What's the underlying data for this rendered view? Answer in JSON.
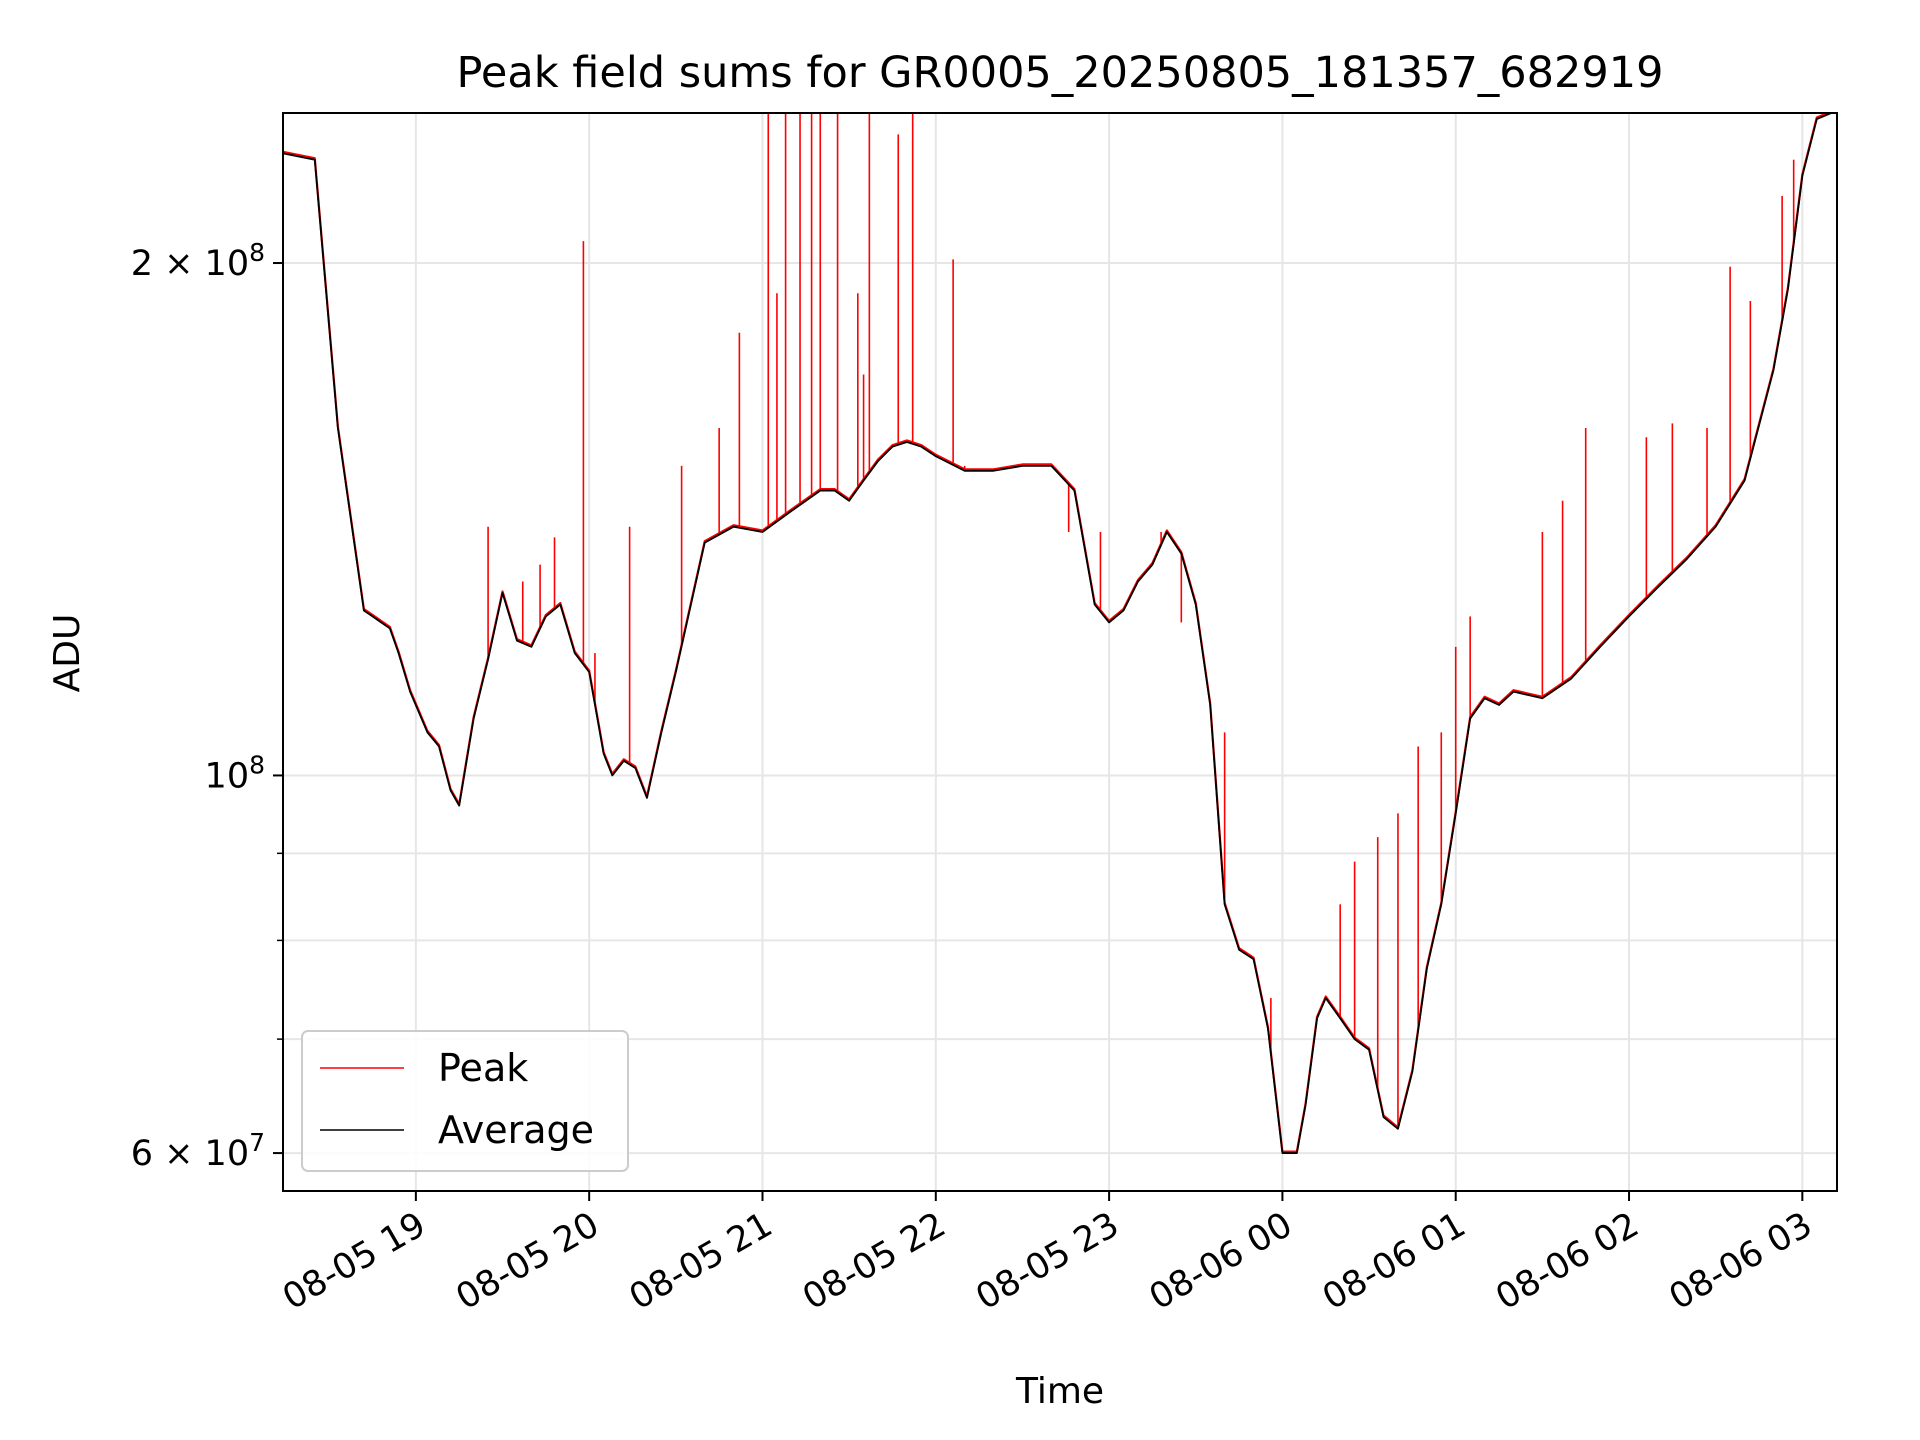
{
  "chart_data": {
    "type": "line",
    "title": "Peak field sums for GR0005_20250805_181357_682919",
    "xlabel": "Time",
    "ylabel": "ADU",
    "yscale": "log",
    "ylim": [
      57000000,
      245000000
    ],
    "xlim": [
      "2025-08-05 18:14",
      "2025-08-06 03:12"
    ],
    "grid": true,
    "legend_position": "lower-left",
    "colors": {
      "peak": "#ff0000",
      "average": "#000000",
      "grid": "#e6e6e6"
    },
    "x_ticks": [
      {
        "value": "2025-08-05 19:00",
        "label": "08-05 19"
      },
      {
        "value": "2025-08-05 20:00",
        "label": "08-05 20"
      },
      {
        "value": "2025-08-05 21:00",
        "label": "08-05 21"
      },
      {
        "value": "2025-08-05 22:00",
        "label": "08-05 22"
      },
      {
        "value": "2025-08-05 23:00",
        "label": "08-05 23"
      },
      {
        "value": "2025-08-06 00:00",
        "label": "08-06 00"
      },
      {
        "value": "2025-08-06 01:00",
        "label": "08-06 01"
      },
      {
        "value": "2025-08-06 02:00",
        "label": "08-06 02"
      },
      {
        "value": "2025-08-06 03:00",
        "label": "08-06 03"
      }
    ],
    "y_major_ticks": [
      {
        "value": 60000000,
        "base": "6 × 10",
        "exp": "7"
      },
      {
        "value": 100000000,
        "base": "10",
        "exp": "8"
      },
      {
        "value": 200000000,
        "base": "2 × 10",
        "exp": "8"
      }
    ],
    "y_minor_gridlines": [
      70000000,
      80000000,
      90000000
    ],
    "series": [
      {
        "name": "Average",
        "x": [
          "2025-08-05 18:14",
          "2025-08-05 18:25",
          "2025-08-05 18:33",
          "2025-08-05 18:42",
          "2025-08-05 18:45",
          "2025-08-05 18:51",
          "2025-08-05 18:54",
          "2025-08-05 18:58",
          "2025-08-05 19:04",
          "2025-08-05 19:08",
          "2025-08-05 19:12",
          "2025-08-05 19:15",
          "2025-08-05 19:20",
          "2025-08-05 19:25",
          "2025-08-05 19:30",
          "2025-08-05 19:35",
          "2025-08-05 19:40",
          "2025-08-05 19:45",
          "2025-08-05 19:50",
          "2025-08-05 19:55",
          "2025-08-05 20:00",
          "2025-08-05 20:05",
          "2025-08-05 20:08",
          "2025-08-05 20:12",
          "2025-08-05 20:16",
          "2025-08-05 20:20",
          "2025-08-05 20:25",
          "2025-08-05 20:30",
          "2025-08-05 20:40",
          "2025-08-05 20:50",
          "2025-08-05 21:00",
          "2025-08-05 21:10",
          "2025-08-05 21:20",
          "2025-08-05 21:25",
          "2025-08-05 21:30",
          "2025-08-05 21:35",
          "2025-08-05 21:40",
          "2025-08-05 21:45",
          "2025-08-05 21:50",
          "2025-08-05 21:55",
          "2025-08-05 22:00",
          "2025-08-05 22:10",
          "2025-08-05 22:20",
          "2025-08-05 22:30",
          "2025-08-05 22:40",
          "2025-08-05 22:48",
          "2025-08-05 22:55",
          "2025-08-05 23:00",
          "2025-08-05 23:05",
          "2025-08-05 23:10",
          "2025-08-05 23:15",
          "2025-08-05 23:20",
          "2025-08-05 23:25",
          "2025-08-05 23:30",
          "2025-08-05 23:35",
          "2025-08-05 23:40",
          "2025-08-05 23:45",
          "2025-08-05 23:50",
          "2025-08-05 23:55",
          "2025-08-06 00:00",
          "2025-08-06 00:05",
          "2025-08-06 00:08",
          "2025-08-06 00:12",
          "2025-08-06 00:15",
          "2025-08-06 00:20",
          "2025-08-06 00:25",
          "2025-08-06 00:30",
          "2025-08-06 00:35",
          "2025-08-06 00:40",
          "2025-08-06 00:45",
          "2025-08-06 00:50",
          "2025-08-06 00:55",
          "2025-08-06 01:00",
          "2025-08-06 01:05",
          "2025-08-06 01:10",
          "2025-08-06 01:15",
          "2025-08-06 01:20",
          "2025-08-06 01:30",
          "2025-08-06 01:40",
          "2025-08-06 01:50",
          "2025-08-06 02:00",
          "2025-08-06 02:10",
          "2025-08-06 02:20",
          "2025-08-06 02:30",
          "2025-08-06 02:40",
          "2025-08-06 02:50",
          "2025-08-06 02:55",
          "2025-08-06 03:00",
          "2025-08-06 03:05",
          "2025-08-06 03:10"
        ],
        "values": [
          232000000,
          230000000,
          160000000,
          125000000,
          124000000,
          122000000,
          118000000,
          112000000,
          106000000,
          104000000,
          98000000,
          96000000,
          108000000,
          117000000,
          128000000,
          120000000,
          119000000,
          124000000,
          126000000,
          118000000,
          115000000,
          103000000,
          100000000,
          102000000,
          101000000,
          97000000,
          106000000,
          115000000,
          137000000,
          140000000,
          139000000,
          143000000,
          147000000,
          147000000,
          145000000,
          149000000,
          153000000,
          156000000,
          157000000,
          156000000,
          154000000,
          151000000,
          151000000,
          152000000,
          152000000,
          147000000,
          126000000,
          123000000,
          125000000,
          130000000,
          133000000,
          139000000,
          135000000,
          126000000,
          110000000,
          84000000,
          79000000,
          78000000,
          71000000,
          60000000,
          60000000,
          64000000,
          72000000,
          74000000,
          72000000,
          70000000,
          69000000,
          63000000,
          62000000,
          67000000,
          77000000,
          84000000,
          95000000,
          108000000,
          111000000,
          110000000,
          112000000,
          111000000,
          114000000,
          119000000,
          124000000,
          129000000,
          134000000,
          140000000,
          149000000,
          173000000,
          193000000,
          225000000,
          243000000,
          245000000
        ]
      },
      {
        "name": "Peak",
        "x": [
          "2025-08-05 19:25",
          "2025-08-05 19:37",
          "2025-08-05 19:43",
          "2025-08-05 19:48",
          "2025-08-05 19:58",
          "2025-08-05 20:02",
          "2025-08-05 20:14",
          "2025-08-05 20:32",
          "2025-08-05 20:45",
          "2025-08-05 20:52",
          "2025-08-05 21:02",
          "2025-08-05 21:05",
          "2025-08-05 21:08",
          "2025-08-05 21:13",
          "2025-08-05 21:17",
          "2025-08-05 21:20",
          "2025-08-05 21:26",
          "2025-08-05 21:33",
          "2025-08-05 21:35",
          "2025-08-05 21:37",
          "2025-08-05 21:47",
          "2025-08-05 21:52",
          "2025-08-05 22:06",
          "2025-08-05 22:10",
          "2025-08-05 22:46",
          "2025-08-05 22:57",
          "2025-08-05 23:18",
          "2025-08-05 23:25",
          "2025-08-05 23:40",
          "2025-08-05 23:56",
          "2025-08-06 00:20",
          "2025-08-06 00:25",
          "2025-08-06 00:33",
          "2025-08-06 00:40",
          "2025-08-06 00:47",
          "2025-08-06 00:55",
          "2025-08-06 01:00",
          "2025-08-06 01:05",
          "2025-08-06 01:30",
          "2025-08-06 01:37",
          "2025-08-06 01:45",
          "2025-08-06 02:06",
          "2025-08-06 02:15",
          "2025-08-06 02:27",
          "2025-08-06 02:35",
          "2025-08-06 02:42",
          "2025-08-06 02:53",
          "2025-08-06 02:57"
        ],
        "values": [
          140000000,
          130000000,
          133000000,
          138000000,
          206000000,
          118000000,
          140000000,
          152000000,
          160000000,
          182000000,
          245000000,
          192000000,
          245000000,
          245000000,
          245000000,
          245000000,
          245000000,
          192000000,
          172000000,
          245000000,
          238000000,
          245000000,
          201000000,
          152000000,
          139000000,
          139000000,
          139000000,
          123000000,
          106000000,
          74000000,
          84000000,
          89000000,
          92000000,
          95000000,
          104000000,
          106000000,
          119000000,
          124000000,
          139000000,
          145000000,
          160000000,
          158000000,
          161000000,
          160000000,
          199000000,
          190000000,
          219000000,
          230000000
        ]
      }
    ]
  }
}
